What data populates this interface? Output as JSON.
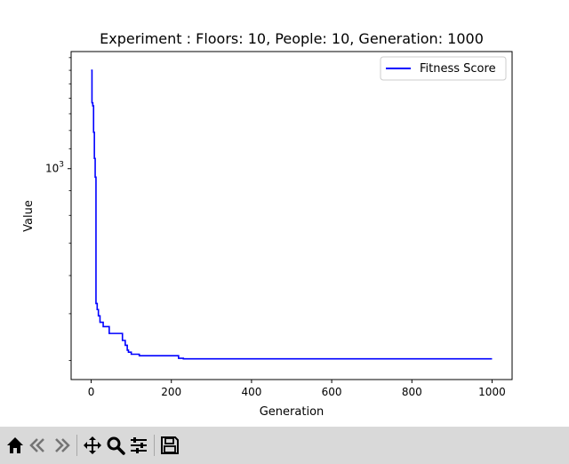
{
  "chart_data": {
    "type": "line",
    "title": "Experiment : Floors: 10, People: 10, Generation: 1000",
    "xlabel": "Generation",
    "ylabel": "Value",
    "yscale": "log",
    "xlim": [
      -50,
      1050
    ],
    "ylim": [
      365,
      1750
    ],
    "xticks": [
      0,
      200,
      400,
      600,
      800,
      1000
    ],
    "yticks_labeled": [
      {
        "value": 1000,
        "label": "10^3"
      }
    ],
    "legend": {
      "placement": "top-right",
      "entries": [
        "Fitness Score"
      ]
    },
    "grid": false,
    "series": [
      {
        "name": "Fitness Score",
        "color": "#0000ff",
        "x": [
          0,
          2,
          2,
          4,
          4,
          6,
          6,
          8,
          8,
          10,
          10,
          12,
          12,
          15,
          15,
          18,
          18,
          22,
          22,
          30,
          30,
          45,
          45,
          78,
          78,
          85,
          85,
          90,
          90,
          93,
          93,
          100,
          100,
          120,
          120,
          218,
          218,
          230,
          230,
          1000
        ],
        "y": [
          1600,
          1600,
          1370,
          1370,
          1350,
          1350,
          1190,
          1190,
          1050,
          1050,
          960,
          960,
          525,
          525,
          510,
          510,
          495,
          495,
          480,
          480,
          470,
          470,
          455,
          455,
          440,
          440,
          430,
          430,
          420,
          420,
          416,
          416,
          412,
          412,
          409,
          409,
          404,
          404,
          403,
          403
        ]
      }
    ]
  },
  "toolbar": {
    "buttons": [
      {
        "name": "home-button",
        "icon": "home-icon"
      },
      {
        "name": "back-button",
        "icon": "back-arrow-icon"
      },
      {
        "name": "forward-button",
        "icon": "forward-arrow-icon"
      },
      {
        "name": "pan-button",
        "icon": "move-icon"
      },
      {
        "name": "zoom-button",
        "icon": "magnifier-icon"
      },
      {
        "name": "configure-subplots-button",
        "icon": "sliders-icon"
      },
      {
        "name": "save-button",
        "icon": "floppy-disk-icon"
      }
    ]
  }
}
